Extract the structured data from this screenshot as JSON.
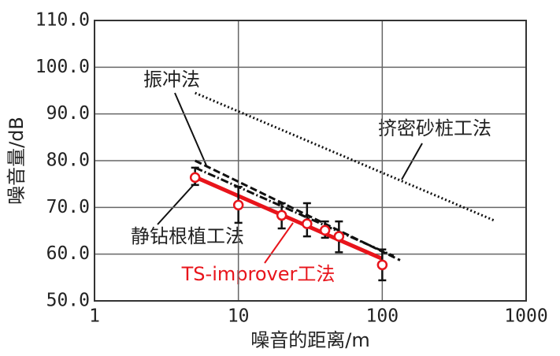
{
  "chart_data": {
    "type": "line",
    "x_label": "噪音的距离/m",
    "y_label": "噪音量/dB",
    "xscale": "log",
    "xlim": [
      1,
      1000
    ],
    "xticks": [
      1,
      10,
      100,
      1000
    ],
    "ylim": [
      50,
      110
    ],
    "yticks": [
      {
        "value": 50,
        "label": "50.0"
      },
      {
        "value": 60,
        "label": "60.0"
      },
      {
        "value": 70,
        "label": "70.0"
      },
      {
        "value": 80,
        "label": "80.0"
      },
      {
        "value": 90,
        "label": "90.0"
      },
      {
        "value": 100,
        "label": "100.0"
      },
      {
        "value": 110,
        "label": "110.0"
      }
    ],
    "grid": true,
    "series": [
      {
        "name": "挤密砂桩工法",
        "color": "#111111",
        "style": "dotted",
        "x": [
          5,
          600
        ],
        "values": [
          94.5,
          67.2
        ]
      },
      {
        "name": "振冲法",
        "color": "#111111",
        "style": "dashed",
        "x": [
          5,
          133
        ],
        "values": [
          80,
          58.7
        ]
      },
      {
        "name": "静钻根植工法",
        "color": "#111111",
        "style": "dashdot",
        "x": [
          5,
          120
        ],
        "values": [
          78.5,
          59.6
        ]
      },
      {
        "name": "TS-improver工法",
        "color": "#e8141b",
        "style": "solid",
        "x": [
          5,
          100
        ],
        "values": [
          76.5,
          59
        ]
      },
      {
        "color": "#e8141b",
        "marker": "circle",
        "error_color": "#111111",
        "x": [
          5,
          10,
          20,
          30,
          40,
          50,
          100
        ],
        "values": [
          76.4,
          70.5,
          68.3,
          66.5,
          65.1,
          63.8,
          57.7
        ],
        "upper": [
          78.5,
          74.4,
          70.9,
          70.9,
          67,
          67,
          61
        ],
        "lower": [
          74.8,
          66.7,
          65.5,
          63.8,
          63.5,
          60.4,
          54.4
        ]
      }
    ]
  }
}
